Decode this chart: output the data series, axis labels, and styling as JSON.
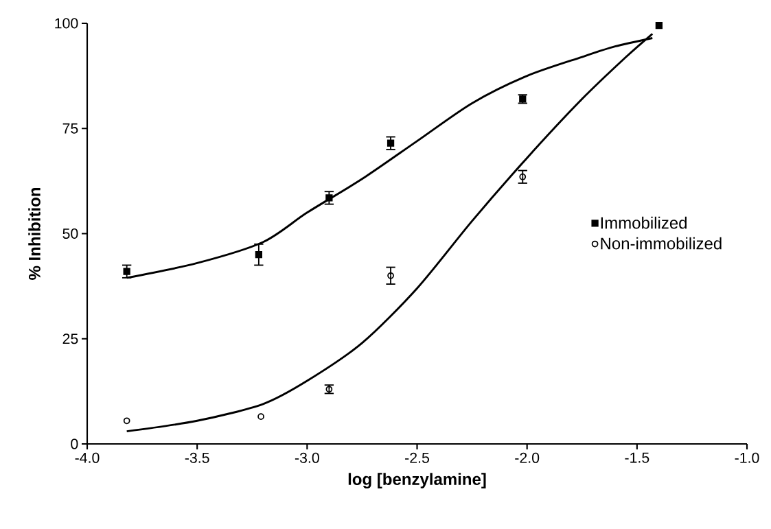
{
  "chart_data": {
    "type": "scatter",
    "xlabel": "log [benzylamine]",
    "ylabel": "% Inhibition",
    "xlim": [
      -4.0,
      -1.0
    ],
    "ylim": [
      0,
      100
    ],
    "xticks": [
      {
        "value": -4.0,
        "label": "-4.0"
      },
      {
        "value": -3.5,
        "label": "-3.5"
      },
      {
        "value": -3.0,
        "label": "-3.0"
      },
      {
        "value": -2.5,
        "label": "-2.5"
      },
      {
        "value": -2.0,
        "label": "-2.0"
      },
      {
        "value": -1.5,
        "label": "-1.5"
      },
      {
        "value": -1.0,
        "label": "-1.0"
      }
    ],
    "yticks": [
      0,
      25,
      50,
      75,
      100
    ],
    "legend": "right",
    "series": [
      {
        "name": "Immobilized",
        "type": "scatter",
        "marker": "square",
        "color": "#000000",
        "x": [
          -3.82,
          -3.22,
          -2.9,
          -2.62,
          -2.02,
          -1.4
        ],
        "values": [
          41,
          45,
          58.5,
          71.5,
          82,
          99.5
        ],
        "errors": [
          1.5,
          2.5,
          1.5,
          1.5,
          1,
          null
        ]
      },
      {
        "name": "Non-immobilized",
        "type": "scatter",
        "marker": "circle",
        "color": "#000000",
        "x": [
          -3.82,
          -3.21,
          -2.9,
          -2.62,
          -2.02
        ],
        "values": [
          5.5,
          6.5,
          13,
          40,
          63.5
        ],
        "errors": [
          null,
          null,
          1,
          2,
          1.5
        ]
      },
      {
        "type": "line",
        "marker": "none",
        "color": "#000000",
        "x": [
          -3.82,
          -3.5,
          -3.2,
          -3.0,
          -2.75,
          -2.5,
          -2.25,
          -2.0,
          -1.75,
          -1.6,
          -1.43
        ],
        "values": [
          39.5,
          43,
          48,
          55,
          63,
          72,
          81,
          87.5,
          92,
          94.5,
          96.5
        ]
      },
      {
        "type": "line",
        "marker": "none",
        "color": "#000000",
        "x": [
          -3.82,
          -3.5,
          -3.2,
          -3.0,
          -2.75,
          -2.5,
          -2.25,
          -2.0,
          -1.75,
          -1.55,
          -1.43
        ],
        "values": [
          3,
          5.5,
          9.5,
          15,
          24,
          37,
          53,
          68,
          82,
          92,
          97.5
        ]
      }
    ]
  }
}
